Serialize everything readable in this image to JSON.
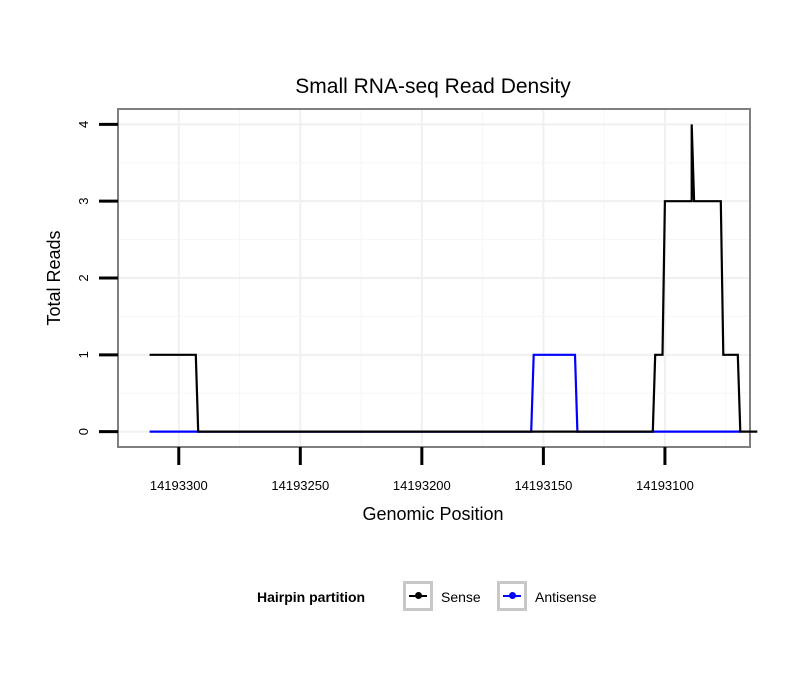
{
  "chart_data": {
    "type": "line",
    "title": "Small RNA-seq Read Density",
    "xlabel": "Genomic Position",
    "ylabel": "Total Reads",
    "xlim": [
      14193065,
      14193325
    ],
    "x_reversed": true,
    "ylim": [
      -0.2,
      4.2
    ],
    "x_ticks": [
      14193300,
      14193250,
      14193200,
      14193150,
      14193100
    ],
    "x_tick_labels": [
      "14193300",
      "14193250",
      "14193200",
      "14193150",
      "14193100"
    ],
    "y_ticks": [
      0,
      1,
      2,
      3,
      4
    ],
    "y_tick_labels": [
      "0",
      "1",
      "2",
      "3",
      "4"
    ],
    "grid": true,
    "legend_title": "Hairpin partition",
    "legend_position": "bottom",
    "series": [
      {
        "name": "Sense",
        "color": "#000000",
        "x": [
          14193312,
          14193293,
          14193292,
          14193153,
          14193105,
          14193104,
          14193101,
          14193100,
          14193089,
          14193089,
          14193088,
          14193077,
          14193076,
          14193070,
          14193069,
          14193062
        ],
        "y": [
          1,
          1,
          0,
          0,
          0,
          1,
          1,
          3,
          3,
          4,
          3,
          3,
          1,
          1,
          0,
          0
        ]
      },
      {
        "name": "Antisense",
        "color": "#0000ff",
        "x": [
          14193312,
          14193293,
          14193155,
          14193154,
          14193137,
          14193136,
          14193104,
          14193069
        ],
        "y": [
          0,
          0,
          0,
          1,
          1,
          0,
          0,
          0
        ]
      }
    ]
  }
}
